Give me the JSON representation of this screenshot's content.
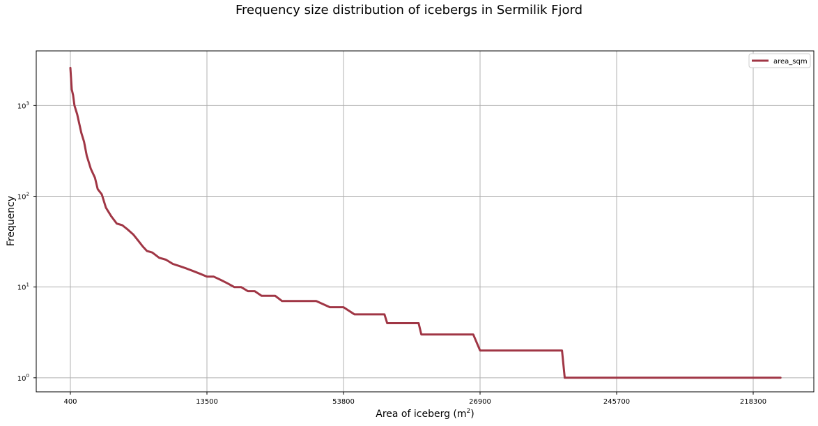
{
  "chart_data": {
    "type": "line",
    "title": "Frequency size distribution of icebergs in Sermilik Fjord",
    "xlabel": "Area of iceberg (m",
    "xlabel_sup": "2",
    "xlabel_suffix": ")",
    "ylabel": "Frequency",
    "y_scale": "log",
    "ylim": [
      0.7,
      4000
    ],
    "grid": true,
    "legend_position": "top-right",
    "x_tick_labels": [
      "400",
      "13500",
      "53800",
      "26900",
      "245700",
      "218300"
    ],
    "y_ticks": [
      {
        "value": 1,
        "base": "10",
        "exp": "0"
      },
      {
        "value": 10,
        "base": "10",
        "exp": "1"
      },
      {
        "value": 100,
        "base": "10",
        "exp": "2"
      },
      {
        "value": 1000,
        "base": "10",
        "exp": "3"
      }
    ],
    "series": [
      {
        "name": "area_sqm",
        "color": "#a03645",
        "x_index": [
          0,
          0.01,
          0.02,
          0.03,
          0.05,
          0.08,
          0.1,
          0.12,
          0.15,
          0.18,
          0.2,
          0.23,
          0.26,
          0.3,
          0.34,
          0.38,
          0.42,
          0.46,
          0.5,
          0.53,
          0.56,
          0.6,
          0.65,
          0.7,
          0.75,
          0.8,
          0.85,
          0.9,
          0.95,
          1.0,
          1.05,
          1.1,
          1.15,
          1.2,
          1.25,
          1.3,
          1.35,
          1.4,
          1.45,
          1.5,
          1.55,
          1.6,
          1.65,
          1.7,
          1.8,
          1.9,
          2.0,
          2.08,
          2.1,
          2.18,
          2.2,
          2.3,
          2.32,
          2.55,
          2.57,
          2.95,
          3.0,
          3.6,
          3.62,
          4.25,
          4.27,
          5.2
        ],
        "values": [
          2600,
          1500,
          1300,
          1000,
          800,
          500,
          400,
          280,
          200,
          160,
          120,
          105,
          75,
          60,
          50,
          48,
          43,
          38,
          32,
          28,
          25,
          24,
          21,
          20,
          18,
          17,
          16,
          15,
          14,
          13,
          13,
          12,
          11,
          10,
          10,
          9,
          9,
          8,
          8,
          8,
          7,
          7,
          7,
          7,
          7,
          6,
          6,
          5,
          5,
          5,
          5,
          5,
          4,
          4,
          3,
          3,
          2,
          2,
          1,
          1,
          1,
          1
        ]
      }
    ]
  }
}
